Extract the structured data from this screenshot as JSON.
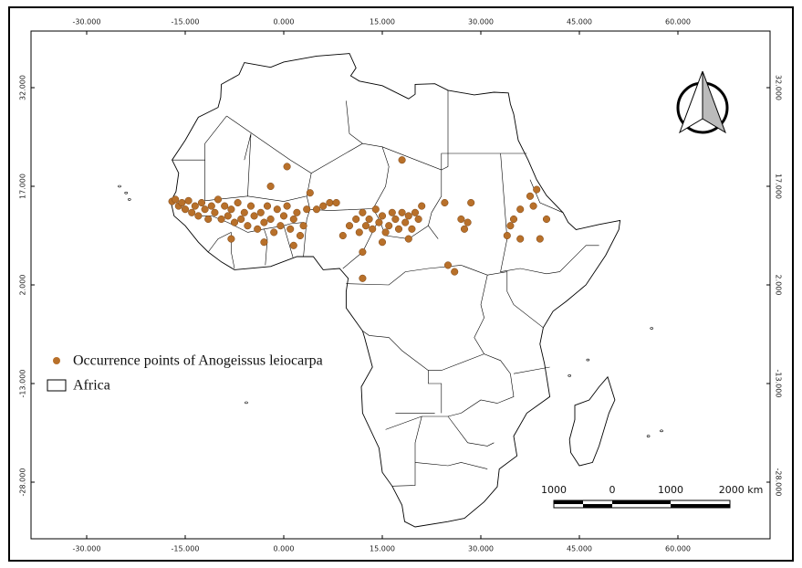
{
  "map": {
    "xticks": [
      {
        "value": -30,
        "label": "-30.000"
      },
      {
        "value": -15,
        "label": "-15.000"
      },
      {
        "value": 0,
        "label": "0.000"
      },
      {
        "value": 15,
        "label": "15.000"
      },
      {
        "value": 30,
        "label": "30.000"
      },
      {
        "value": 45,
        "label": "45.000"
      },
      {
        "value": 60,
        "label": "60.000"
      }
    ],
    "yticks": [
      {
        "value": 32,
        "label": "32.000"
      },
      {
        "value": 17,
        "label": "17.000"
      },
      {
        "value": 2,
        "label": "2.000"
      },
      {
        "value": -13,
        "label": "-13.000"
      },
      {
        "value": -28,
        "label": "-28.000"
      }
    ],
    "legend": {
      "points_label": "Occurrence points of Anogeissus leiocarpa",
      "area_label": "Africa"
    },
    "scale_bar": {
      "labels": [
        "1000",
        "0",
        "1000",
        "2000 km"
      ]
    },
    "point_color": "#b8702a",
    "occurrence_points": [
      [
        -17,
        14.7
      ],
      [
        -16.5,
        15
      ],
      [
        -16,
        14
      ],
      [
        -15.5,
        14.5
      ],
      [
        -15,
        13.5
      ],
      [
        -14.5,
        14.8
      ],
      [
        -14,
        13
      ],
      [
        -13.5,
        14
      ],
      [
        -13,
        12.5
      ],
      [
        -12.5,
        14.5
      ],
      [
        -12,
        13.5
      ],
      [
        -11.5,
        12
      ],
      [
        -11,
        14
      ],
      [
        -10.5,
        13
      ],
      [
        -10,
        15
      ],
      [
        -9.5,
        12
      ],
      [
        -9,
        14
      ],
      [
        -8.5,
        12.5
      ],
      [
        -8,
        13.5
      ],
      [
        -7.5,
        11.5
      ],
      [
        -7,
        14.5
      ],
      [
        -6.5,
        12
      ],
      [
        -6,
        13
      ],
      [
        -5.5,
        11
      ],
      [
        -5,
        14
      ],
      [
        -4.5,
        12.5
      ],
      [
        -4,
        10.5
      ],
      [
        -3.5,
        13
      ],
      [
        -3,
        11.5
      ],
      [
        -2.5,
        14
      ],
      [
        -2,
        12
      ],
      [
        -1.5,
        10
      ],
      [
        -1,
        13.5
      ],
      [
        -0.5,
        11
      ],
      [
        0,
        12.5
      ],
      [
        0.5,
        14
      ],
      [
        1,
        10.5
      ],
      [
        1.5,
        12
      ],
      [
        2,
        13
      ],
      [
        2.5,
        9.5
      ],
      [
        3,
        11
      ],
      [
        3.5,
        13.5
      ],
      [
        -2,
        17
      ],
      [
        0.5,
        20
      ],
      [
        -8,
        9
      ],
      [
        -3,
        8.5
      ],
      [
        1.5,
        8
      ],
      [
        5,
        13.5
      ],
      [
        6,
        14
      ],
      [
        7,
        14.5
      ],
      [
        8,
        14.5
      ],
      [
        4,
        16
      ],
      [
        10,
        11
      ],
      [
        11,
        12
      ],
      [
        11.5,
        10
      ],
      [
        12,
        13
      ],
      [
        12.5,
        11
      ],
      [
        13,
        12
      ],
      [
        13.5,
        10.5
      ],
      [
        14,
        13.5
      ],
      [
        14.5,
        11.5
      ],
      [
        15,
        12.5
      ],
      [
        15.5,
        10
      ],
      [
        16,
        11
      ],
      [
        16.5,
        13
      ],
      [
        17,
        12
      ],
      [
        17.5,
        10.5
      ],
      [
        18,
        13
      ],
      [
        18.5,
        11.5
      ],
      [
        19,
        12.5
      ],
      [
        19.5,
        10.5
      ],
      [
        20,
        13
      ],
      [
        20.5,
        12
      ],
      [
        21,
        14
      ],
      [
        19,
        9
      ],
      [
        15,
        8.5
      ],
      [
        9,
        9.5
      ],
      [
        18,
        21
      ],
      [
        12,
        7
      ],
      [
        12,
        3
      ],
      [
        25,
        5
      ],
      [
        26,
        4
      ],
      [
        24.5,
        14.5
      ],
      [
        28.5,
        14.5
      ],
      [
        27,
        12
      ],
      [
        28,
        11.5
      ],
      [
        27.5,
        10.5
      ],
      [
        37.5,
        15.5
      ],
      [
        38,
        14
      ],
      [
        36,
        13.5
      ],
      [
        35,
        12
      ],
      [
        34.5,
        11
      ],
      [
        36,
        9
      ],
      [
        39,
        9
      ],
      [
        40,
        12
      ],
      [
        38.5,
        16.5
      ],
      [
        34,
        9.5
      ]
    ]
  }
}
